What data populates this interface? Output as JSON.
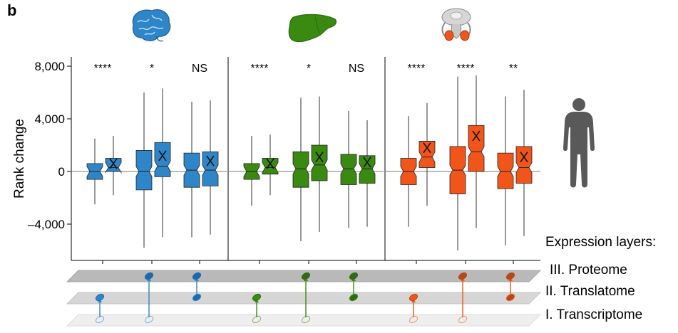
{
  "panel_label": "b",
  "colors": {
    "brain": "#2e86c8",
    "liver": "#3a8a12",
    "testis": "#f2551a",
    "brain_dark": "#1d6aa8",
    "liver_dark": "#2e6b14",
    "testis_dark": "#b84818",
    "plane": "#d9d9d9",
    "human": "#595959"
  },
  "icons": [
    "brain-icon",
    "liver-icon",
    "testis-icon",
    "human-body-icon"
  ],
  "chart_data": {
    "type": "box",
    "ylabel": "Rank change",
    "ylim": [
      -6500,
      8800
    ],
    "yticks": [
      8000,
      4000,
      0,
      -4000
    ],
    "ytick_labels": [
      "8,000",
      "4,000",
      "0",
      "–4,000"
    ],
    "reference_line": 0,
    "panels": [
      {
        "tissue": "brain",
        "comparisons": [
          {
            "significance": "****",
            "boxes": [
              {
                "q1": -600,
                "median": 0,
                "q3": 600,
                "whisker_low": -2500,
                "whisker_high": 2500,
                "mean": null
              },
              {
                "q1": 0,
                "median": 300,
                "q3": 1000,
                "whisker_low": -1800,
                "whisker_high": 2700,
                "mean": 600
              }
            ]
          },
          {
            "significance": "*",
            "boxes": [
              {
                "q1": -1400,
                "median": 0,
                "q3": 1600,
                "whisker_low": -5800,
                "whisker_high": 6000,
                "mean": null
              },
              {
                "q1": -400,
                "median": 400,
                "q3": 2200,
                "whisker_low": -5000,
                "whisker_high": 6300,
                "mean": 1200
              }
            ]
          },
          {
            "significance": "NS",
            "boxes": [
              {
                "q1": -1200,
                "median": 100,
                "q3": 1400,
                "whisker_low": -5000,
                "whisker_high": 5300,
                "mean": null
              },
              {
                "q1": -1100,
                "median": 100,
                "q3": 1500,
                "whisker_low": -4800,
                "whisker_high": 5400,
                "mean": 800
              }
            ]
          }
        ]
      },
      {
        "tissue": "liver",
        "comparisons": [
          {
            "significance": "****",
            "boxes": [
              {
                "q1": -600,
                "median": 0,
                "q3": 600,
                "whisker_low": -2600,
                "whisker_high": 2700,
                "mean": null
              },
              {
                "q1": -200,
                "median": 300,
                "q3": 1000,
                "whisker_low": -1800,
                "whisker_high": 2800,
                "mean": 600
              }
            ]
          },
          {
            "significance": "*",
            "boxes": [
              {
                "q1": -1200,
                "median": 200,
                "q3": 1500,
                "whisker_low": -5300,
                "whisker_high": 5600,
                "mean": null
              },
              {
                "q1": -700,
                "median": 500,
                "q3": 2000,
                "whisker_low": -4600,
                "whisker_high": 5700,
                "mean": 1100
              }
            ]
          },
          {
            "significance": "NS",
            "boxes": [
              {
                "q1": -1000,
                "median": 200,
                "q3": 1300,
                "whisker_low": -4300,
                "whisker_high": 4600,
                "mean": null
              },
              {
                "q1": -900,
                "median": 200,
                "q3": 1200,
                "whisker_low": -4200,
                "whisker_high": 3900,
                "mean": 700
              }
            ]
          }
        ]
      },
      {
        "tissue": "testis",
        "comparisons": [
          {
            "significance": "****",
            "boxes": [
              {
                "q1": -1000,
                "median": 0,
                "q3": 1000,
                "whisker_low": -4200,
                "whisker_high": 4200,
                "mean": null
              },
              {
                "q1": 300,
                "median": 1100,
                "q3": 2300,
                "whisker_low": -2600,
                "whisker_high": 5200,
                "mean": 1800
              }
            ]
          },
          {
            "significance": "****",
            "boxes": [
              {
                "q1": -1700,
                "median": 100,
                "q3": 1900,
                "whisker_low": -6000,
                "whisker_high": 7200,
                "mean": null
              },
              {
                "q1": 0,
                "median": 1500,
                "q3": 3500,
                "whisker_low": -4300,
                "whisker_high": 7300,
                "mean": 2700
              }
            ]
          },
          {
            "significance": "**",
            "boxes": [
              {
                "q1": -1300,
                "median": 0,
                "q3": 1400,
                "whisker_low": -5600,
                "whisker_high": 5700,
                "mean": null
              },
              {
                "q1": -900,
                "median": 300,
                "q3": 1900,
                "whisker_low": -4900,
                "whisker_high": 6200,
                "mean": 1100
              }
            ]
          }
        ]
      }
    ]
  },
  "legend": {
    "title": "Expression layers:",
    "layers": [
      "III. Proteome",
      "II. Translatome",
      "I. Transcriptome"
    ]
  }
}
